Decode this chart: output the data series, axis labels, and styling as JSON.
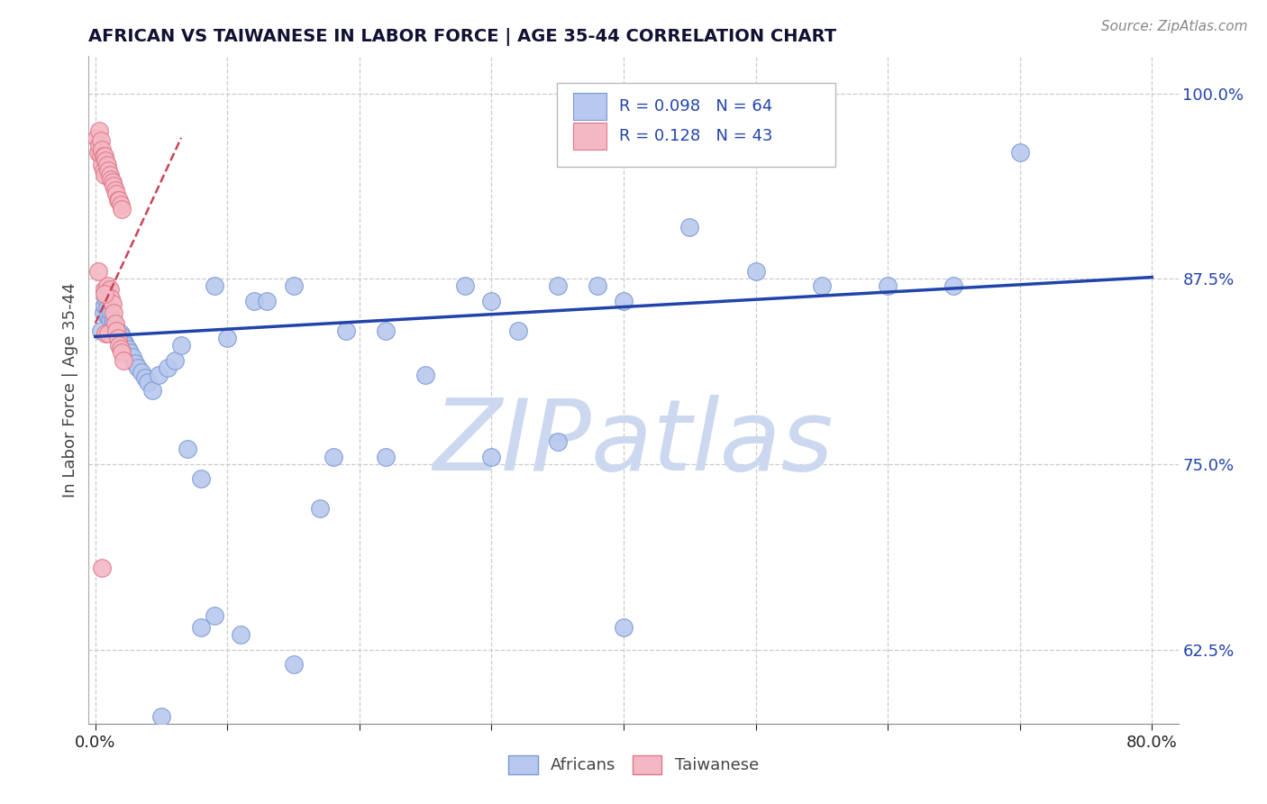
{
  "title": "AFRICAN VS TAIWANESE IN LABOR FORCE | AGE 35-44 CORRELATION CHART",
  "source_text": "Source: ZipAtlas.com",
  "ylabel": "In Labor Force | Age 35-44",
  "xlim": [
    -0.005,
    0.82
  ],
  "ylim": [
    0.575,
    1.025
  ],
  "yticks": [
    0.625,
    0.75,
    0.875,
    1.0
  ],
  "yticklabels": [
    "62.5%",
    "75.0%",
    "87.5%",
    "100.0%"
  ],
  "blue_R": 0.098,
  "blue_N": 64,
  "pink_R": 0.128,
  "pink_N": 43,
  "blue_color": "#b8c8ee",
  "blue_edge": "#7a9ad4",
  "pink_color": "#f4b8c4",
  "pink_edge": "#e07888",
  "blue_line_color": "#2244aa",
  "pink_line_color": "#cc4455",
  "legend_label_blue": "Africans",
  "legend_label_pink": "Taiwanese",
  "watermark": "ZIPatlas",
  "watermark_color": "#ccd8f0",
  "title_color": "#111133",
  "axis_label_color": "#444444",
  "tick_color_blue": "#2244aa",
  "tick_color_black": "#222222",
  "grid_color": "#cccccc",
  "background_color": "#ffffff",
  "blue_line_y0": 0.836,
  "blue_line_y1": 0.876,
  "pink_line_x0": 0.0,
  "pink_line_x1": 0.065,
  "pink_line_y0": 0.845,
  "pink_line_y1": 0.97,
  "blue_x": [
    0.004,
    0.006,
    0.007,
    0.008,
    0.009,
    0.01,
    0.011,
    0.012,
    0.013,
    0.014,
    0.015,
    0.016,
    0.017,
    0.018,
    0.019,
    0.02,
    0.022,
    0.023,
    0.025,
    0.026,
    0.028,
    0.03,
    0.032,
    0.035,
    0.038,
    0.04,
    0.043,
    0.048,
    0.055,
    0.06,
    0.065,
    0.07,
    0.08,
    0.09,
    0.1,
    0.12,
    0.13,
    0.15,
    0.17,
    0.19,
    0.22,
    0.25,
    0.28,
    0.3,
    0.32,
    0.35,
    0.38,
    0.4,
    0.45,
    0.5,
    0.55,
    0.6,
    0.65,
    0.7,
    0.22,
    0.18,
    0.3,
    0.35,
    0.4,
    0.15,
    0.08,
    0.05,
    0.09,
    0.11
  ],
  "blue_y": [
    0.84,
    0.852,
    0.857,
    0.862,
    0.855,
    0.85,
    0.848,
    0.852,
    0.847,
    0.845,
    0.843,
    0.84,
    0.838,
    0.835,
    0.838,
    0.836,
    0.832,
    0.83,
    0.828,
    0.825,
    0.822,
    0.818,
    0.815,
    0.812,
    0.808,
    0.805,
    0.8,
    0.81,
    0.815,
    0.82,
    0.83,
    0.76,
    0.74,
    0.87,
    0.835,
    0.86,
    0.86,
    0.87,
    0.72,
    0.84,
    0.84,
    0.81,
    0.87,
    0.86,
    0.84,
    0.87,
    0.87,
    0.86,
    0.91,
    0.88,
    0.87,
    0.87,
    0.87,
    0.96,
    0.755,
    0.755,
    0.755,
    0.765,
    0.64,
    0.615,
    0.64,
    0.58,
    0.648,
    0.635
  ],
  "pink_x": [
    0.001,
    0.002,
    0.003,
    0.003,
    0.004,
    0.004,
    0.005,
    0.005,
    0.006,
    0.006,
    0.007,
    0.007,
    0.007,
    0.008,
    0.008,
    0.009,
    0.009,
    0.01,
    0.01,
    0.011,
    0.011,
    0.012,
    0.012,
    0.013,
    0.013,
    0.014,
    0.014,
    0.015,
    0.015,
    0.016,
    0.016,
    0.017,
    0.017,
    0.018,
    0.018,
    0.019,
    0.019,
    0.02,
    0.02,
    0.021,
    0.002,
    0.007,
    0.005
  ],
  "pink_y": [
    0.97,
    0.96,
    0.975,
    0.965,
    0.968,
    0.958,
    0.962,
    0.952,
    0.958,
    0.948,
    0.958,
    0.945,
    0.868,
    0.955,
    0.838,
    0.952,
    0.87,
    0.948,
    0.838,
    0.945,
    0.868,
    0.942,
    0.862,
    0.94,
    0.858,
    0.938,
    0.852,
    0.935,
    0.845,
    0.932,
    0.84,
    0.928,
    0.835,
    0.928,
    0.83,
    0.925,
    0.828,
    0.922,
    0.825,
    0.82,
    0.88,
    0.865,
    0.68
  ]
}
